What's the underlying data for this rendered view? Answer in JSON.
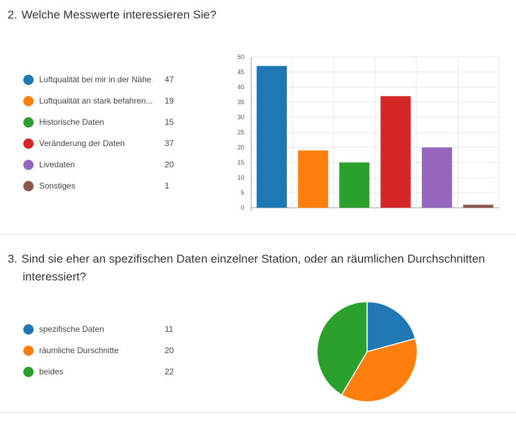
{
  "question2": {
    "number": "2.",
    "title": "Welche Messwerte interessieren Sie?",
    "legend": [
      {
        "label": "Luftqualität bei mir in der Nähe",
        "count": "47",
        "color": "#1f77b4"
      },
      {
        "label": "Luftqualität an stark befahren...",
        "count": "19",
        "color": "#ff7f0e"
      },
      {
        "label": "Historische Daten",
        "count": "15",
        "color": "#2ca02c"
      },
      {
        "label": "Veränderung der Daten",
        "count": "37",
        "color": "#d62728"
      },
      {
        "label": "Livedaten",
        "count": "20",
        "color": "#9467bd"
      },
      {
        "label": "Sonstiges",
        "count": "1",
        "color": "#8c564b"
      }
    ]
  },
  "question3": {
    "number": "3.",
    "title_line1": "Sind sie eher an spezifischen Daten einzelner Station, oder an räumlichen Durchschnitten",
    "title_line2": "interessiert?",
    "legend": [
      {
        "label": "spezifische Daten",
        "count": "11",
        "color": "#1f77b4"
      },
      {
        "label": "räumliche Durschnitte",
        "count": "20",
        "color": "#ff7f0e"
      },
      {
        "label": "beides",
        "count": "22",
        "color": "#2ca02c"
      }
    ]
  },
  "chart_data": [
    {
      "type": "bar",
      "categories": [
        "Luftqualität bei mir in der Nähe",
        "Luftqualität an stark befahren...",
        "Historische Daten",
        "Veränderung der Daten",
        "Livedaten",
        "Sonstiges"
      ],
      "values": [
        47,
        19,
        15,
        37,
        20,
        1
      ],
      "colors": [
        "#1f77b4",
        "#ff7f0e",
        "#2ca02c",
        "#d62728",
        "#9467bd",
        "#8c564b"
      ],
      "ylim": [
        0,
        50
      ],
      "yticks": [
        "0",
        "5",
        "10",
        "15",
        "20",
        "25",
        "30",
        "35",
        "40",
        "45",
        "50"
      ],
      "grid": true,
      "legend_position": "left"
    },
    {
      "type": "pie",
      "categories": [
        "spezifische Daten",
        "räumliche Durschnitte",
        "beides"
      ],
      "values": [
        11,
        20,
        22
      ],
      "colors": [
        "#1f77b4",
        "#ff7f0e",
        "#2ca02c"
      ],
      "legend_position": "left"
    }
  ]
}
